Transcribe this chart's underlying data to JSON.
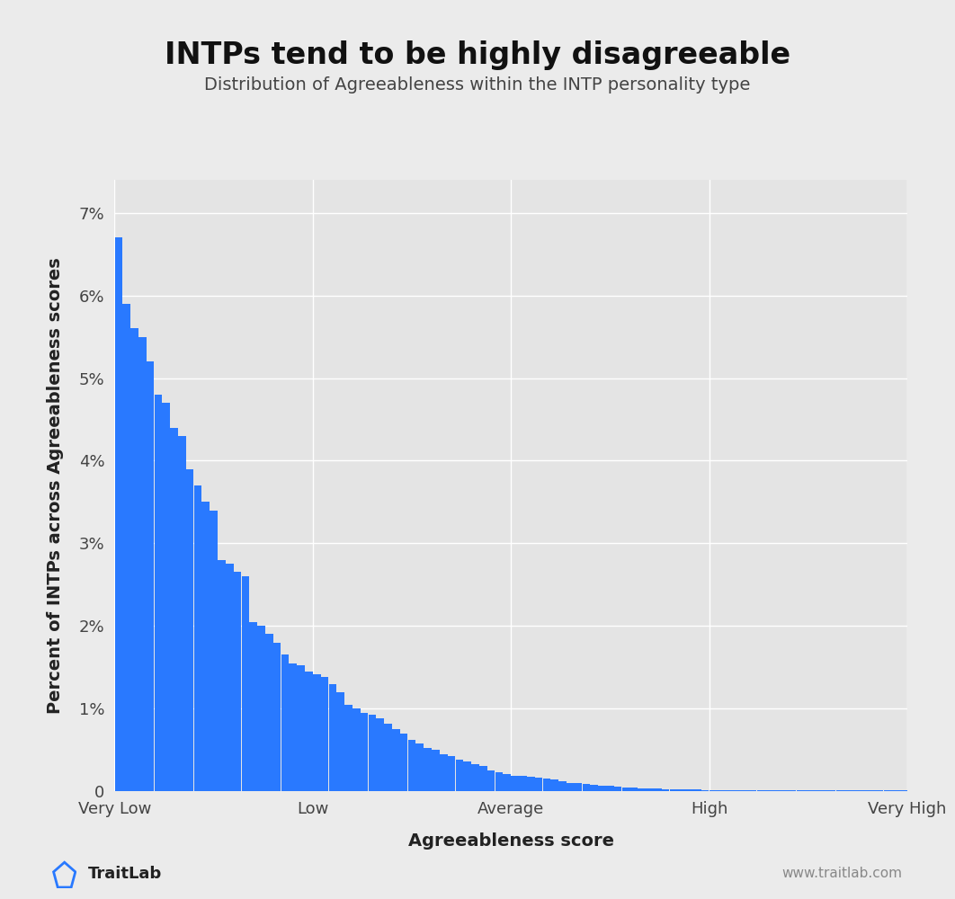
{
  "title": "INTPs tend to be highly disagreeable",
  "subtitle": "Distribution of Agreeableness within the INTP personality type",
  "xlabel": "Agreeableness score",
  "ylabel": "Percent of INTPs across Agreeableness scores",
  "bar_color": "#2979FF",
  "background_color": "#ebebeb",
  "plot_bg_color": "#e4e4e4",
  "grid_color": "#ffffff",
  "title_fontsize": 24,
  "subtitle_fontsize": 14,
  "label_fontsize": 14,
  "tick_fontsize": 13,
  "ylim": [
    0,
    0.074
  ],
  "yticks": [
    0,
    0.01,
    0.02,
    0.03,
    0.04,
    0.05,
    0.06,
    0.07
  ],
  "ytick_labels": [
    "0",
    "1%",
    "2%",
    "3%",
    "4%",
    "5%",
    "6%",
    "7%"
  ],
  "xtick_pos": [
    0,
    25,
    50,
    75,
    100
  ],
  "xtick_labels": [
    "Very Low",
    "Low",
    "Average",
    "High",
    "Very High"
  ],
  "bar_heights_pct": [
    6.7,
    5.9,
    5.6,
    5.5,
    5.2,
    4.8,
    4.7,
    4.4,
    4.3,
    3.9,
    3.7,
    3.5,
    3.4,
    2.8,
    2.75,
    2.65,
    2.6,
    2.05,
    2.0,
    1.9,
    1.8,
    1.65,
    1.55,
    1.52,
    1.45,
    1.42,
    1.38,
    1.3,
    1.2,
    1.05,
    1.0,
    0.95,
    0.92,
    0.88,
    0.82,
    0.75,
    0.7,
    0.62,
    0.58,
    0.52,
    0.5,
    0.45,
    0.42,
    0.38,
    0.36,
    0.33,
    0.3,
    0.25,
    0.23,
    0.21,
    0.19,
    0.18,
    0.17,
    0.16,
    0.15,
    0.14,
    0.12,
    0.1,
    0.1,
    0.09,
    0.08,
    0.07,
    0.06,
    0.05,
    0.04,
    0.04,
    0.03,
    0.03,
    0.03,
    0.02,
    0.02,
    0.02,
    0.02,
    0.02,
    0.01,
    0.01,
    0.01,
    0.01,
    0.01,
    0.01,
    0.01,
    0.01,
    0.01,
    0.01,
    0.01,
    0.01,
    0.01,
    0.01,
    0.01,
    0.01,
    0.01,
    0.01,
    0.01,
    0.01,
    0.01,
    0.01,
    0.01,
    0.01,
    0.01,
    0.01
  ],
  "logo_text": "TraitLab",
  "watermark_text": "www.traitlab.com"
}
